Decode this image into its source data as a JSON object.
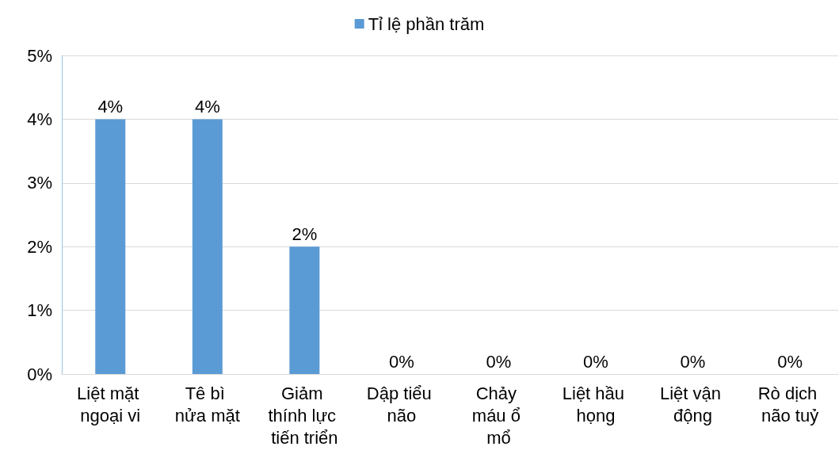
{
  "chart_data": {
    "type": "bar",
    "categories": [
      "Liệt mặt ngoại vi",
      "Tê bì nửa mặt",
      "Giảm thính lực tiến triển",
      "Dập tiểu não",
      "Chảy máu ổ mổ",
      "Liệt hầu họng",
      "Liệt vận động",
      "Rò dịch não tuỷ"
    ],
    "series": [
      {
        "name": "Tỉ lệ phần trăm",
        "color": "#5b9bd5",
        "values": [
          4,
          4,
          2,
          0,
          0,
          0,
          0,
          0
        ],
        "value_labels": [
          "4%",
          "4%",
          "2%",
          "0%",
          "0%",
          "0%",
          "0%",
          "0%"
        ]
      }
    ],
    "ylim": [
      0,
      5
    ],
    "yticks": [
      {
        "value": 0,
        "label": "0%"
      },
      {
        "value": 1,
        "label": "1%"
      },
      {
        "value": 2,
        "label": "2%"
      },
      {
        "value": 3,
        "label": "3%"
      },
      {
        "value": 4,
        "label": "4%"
      },
      {
        "value": 5,
        "label": "5%"
      }
    ],
    "grid": "y",
    "legend": "top"
  }
}
